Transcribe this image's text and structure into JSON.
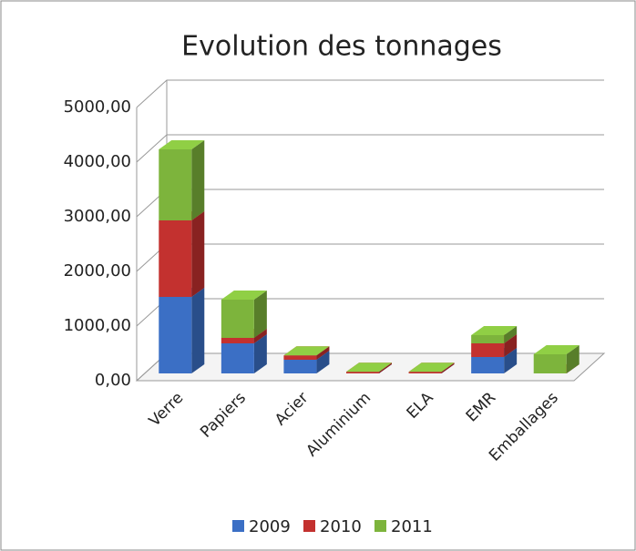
{
  "chart_data": {
    "type": "bar3d_stacked",
    "title": "Evolution des tonnages",
    "categories": [
      "Verre",
      "Papiers",
      "Acier",
      "Aluminium",
      "ELA",
      "EMR",
      "Emballages"
    ],
    "series": [
      {
        "name": "2009",
        "color": "#3b6fc5",
        "values": [
          1400,
          550,
          250,
          0,
          0,
          300,
          0
        ]
      },
      {
        "name": "2010",
        "color": "#c3312f",
        "values": [
          1400,
          100,
          80,
          30,
          30,
          250,
          0
        ]
      },
      {
        "name": "2011",
        "color": "#7db43c",
        "values": [
          1300,
          700,
          0,
          0,
          0,
          150,
          350
        ]
      }
    ],
    "ylim": [
      0,
      5000
    ],
    "yticks": [
      {
        "value": 0,
        "label": "0,00"
      },
      {
        "value": 1000,
        "label": "1000,00"
      },
      {
        "value": 2000,
        "label": "2000,00"
      },
      {
        "value": 3000,
        "label": "3000,00"
      },
      {
        "value": 4000,
        "label": "4000,00"
      },
      {
        "value": 5000,
        "label": "5000,00"
      }
    ],
    "grid": true,
    "legend": "bottom"
  }
}
